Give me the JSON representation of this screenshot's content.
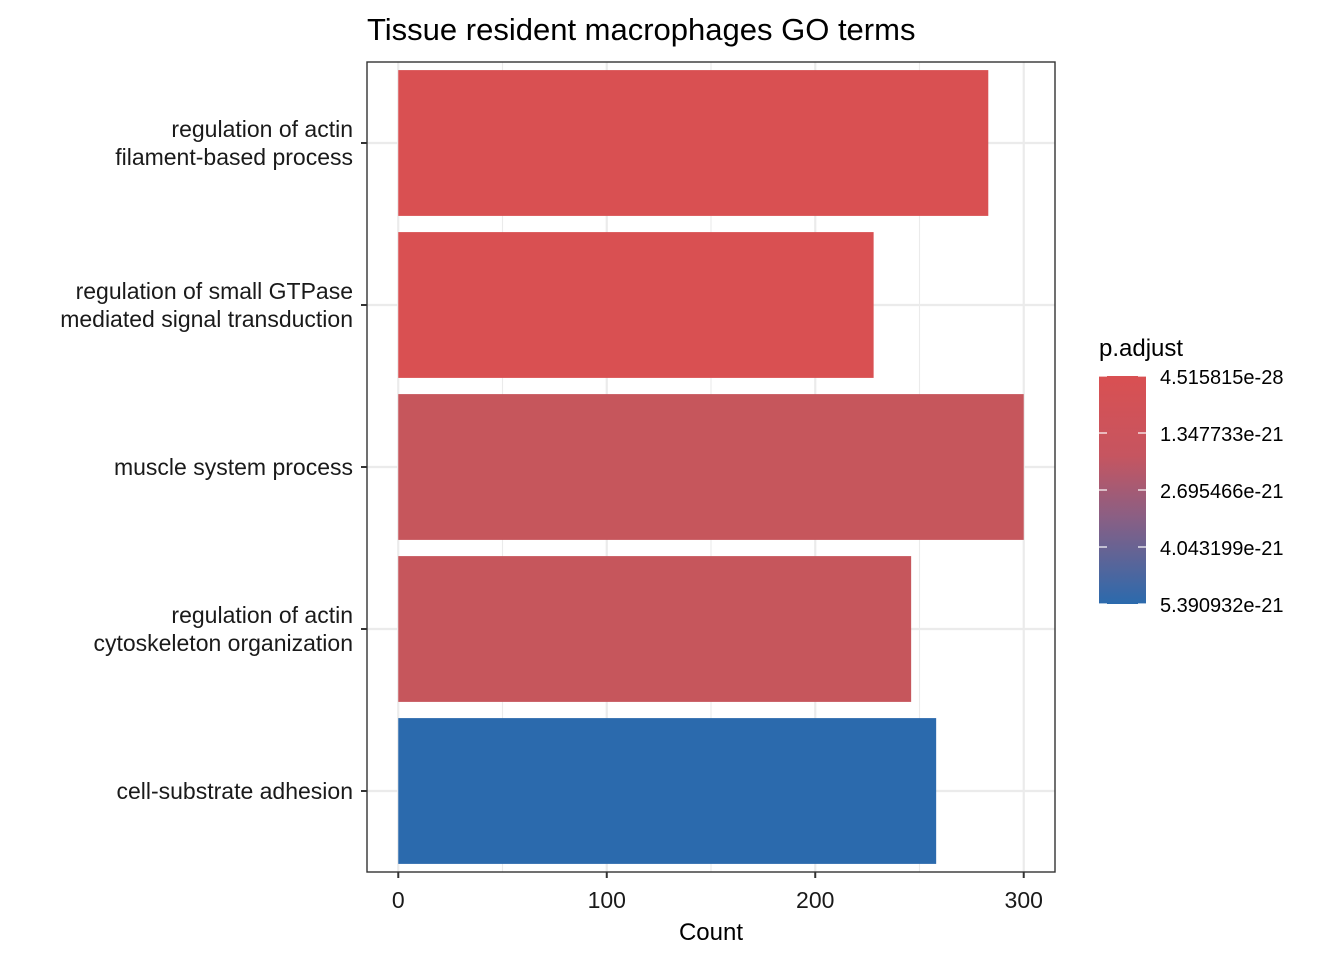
{
  "chart_data": {
    "type": "bar",
    "orientation": "horizontal",
    "title": "Tissue resident macrophages GO terms",
    "xlabel": "Count",
    "ylabel": "",
    "xlim": [
      -15,
      315
    ],
    "xticks": [
      0,
      100,
      200,
      300
    ],
    "grid": true,
    "categories": [
      [
        "regulation of actin",
        "filament-based process"
      ],
      [
        "regulation of small GTPase",
        "mediated signal transduction"
      ],
      [
        "muscle system process"
      ],
      [
        "regulation of actin",
        "cytoskeleton organization"
      ],
      [
        "cell-substrate adhesion"
      ]
    ],
    "values": [
      283,
      228,
      300,
      246,
      258
    ],
    "p_adjust": [
      4.515815e-28,
      3e-25,
      8e-23,
      7.5e-23,
      5.390932e-21
    ],
    "legend": {
      "title": "p.adjust",
      "position": "right",
      "labels": [
        "4.515815e-28",
        "1.347733e-21",
        "2.695466e-21",
        "4.043199e-21",
        "5.390932e-21"
      ],
      "color_low_value": "#d95052",
      "color_mid_value": "#c4585e",
      "color_high_value": "#2b6aad"
    },
    "colors": {
      "bar_fills": [
        "#d95052",
        "#d95052",
        "#c6565c",
        "#c6565c",
        "#2b6aad"
      ],
      "gridline": "#ebebeb",
      "panel_border": "#333333",
      "text": "#1a1a1a"
    }
  }
}
